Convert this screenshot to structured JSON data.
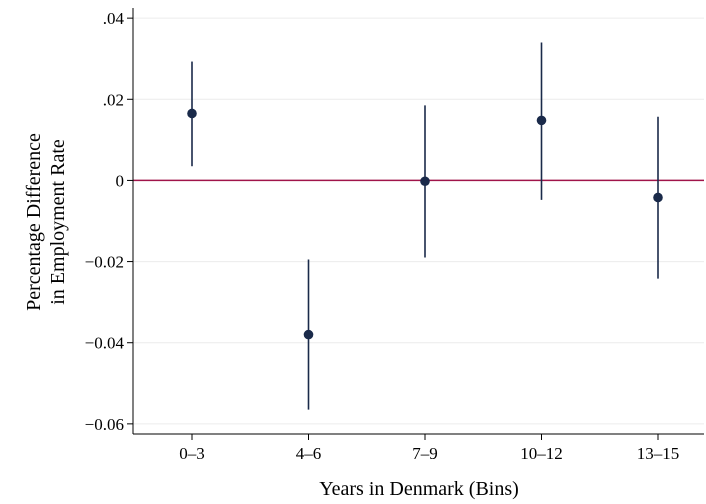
{
  "chart_data": {
    "type": "scatter",
    "title": "",
    "xlabel": "Years in Denmark (Bins)",
    "ylabel_lines": [
      "Percentage Difference",
      "in Employment Rate"
    ],
    "categories": [
      "0–3",
      "4–6",
      "7–9",
      "10–12",
      "13–15"
    ],
    "series": [
      {
        "values": [
          0.0165,
          -0.038,
          -0.0002,
          0.0148,
          -0.0042
        ],
        "ci_low": [
          0.0035,
          -0.0565,
          -0.019,
          -0.0048,
          -0.0242
        ],
        "ci_high": [
          0.0293,
          -0.0195,
          0.0185,
          0.034,
          0.0157
        ]
      }
    ],
    "ylim": [
      -0.0625,
      0.0425
    ],
    "yticks": [
      0.04,
      0.02,
      0,
      -0.02,
      -0.04,
      -0.06
    ],
    "ytick_labels": [
      ".04",
      ".02",
      "0",
      "−0.02",
      "−0.04",
      "−0.06"
    ],
    "reference_line": 0,
    "grid": true,
    "colors": {
      "marker": "#1a2a4a",
      "reference_line": "#a0144a",
      "grid": "#ececec"
    }
  }
}
